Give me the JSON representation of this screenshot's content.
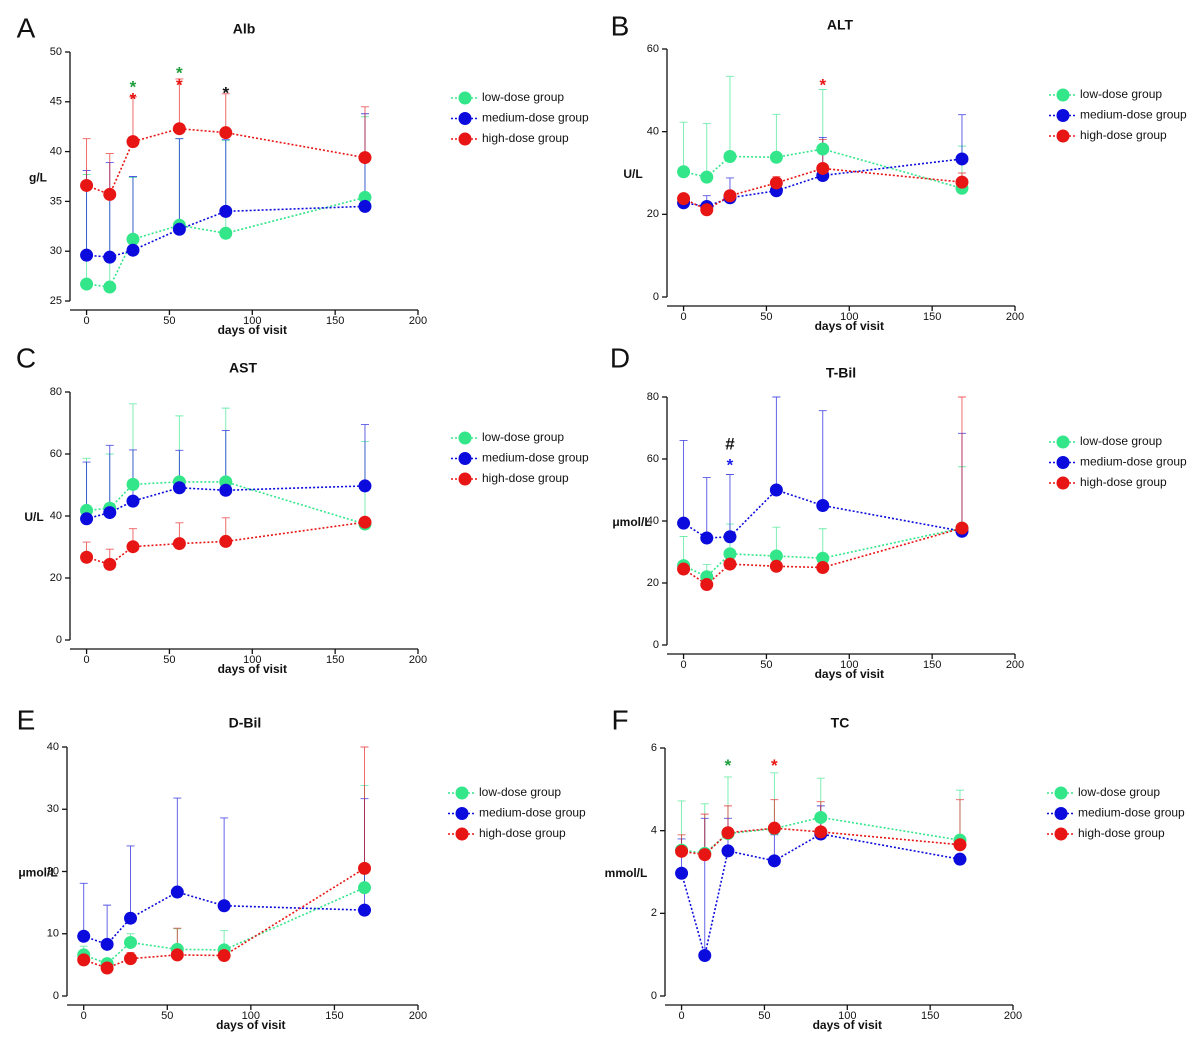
{
  "chart_data": [
    {
      "type": "line",
      "panel": "A",
      "title": "Alb",
      "x_label": "days of visit",
      "y_label": "g/L",
      "x": [
        0,
        14,
        28,
        56,
        84,
        168
      ],
      "xlim": [
        -10,
        200
      ],
      "xticks": [
        0,
        50,
        100,
        150,
        200
      ],
      "ylim": [
        25,
        50
      ],
      "yticks": [
        25,
        30,
        35,
        40,
        45,
        50
      ],
      "series": [
        {
          "name": "low-dose group",
          "color": "#33e68a",
          "values": [
            26.7,
            26.4,
            31.2,
            32.6,
            31.8,
            35.4
          ],
          "errors": [
            11,
            9,
            6.2,
            8.7,
            9.3,
            8.1
          ]
        },
        {
          "name": "medium-dose group",
          "color": "#0b0bdd",
          "values": [
            29.6,
            29.4,
            30.1,
            32.2,
            34.0,
            34.5
          ],
          "errors": [
            8.5,
            9.5,
            7.4,
            9.1,
            7.2,
            9.3
          ]
        },
        {
          "name": "high-dose group",
          "color": "#e81515",
          "values": [
            36.6,
            35.7,
            41.0,
            42.3,
            41.9,
            39.4
          ],
          "errors": [
            4.7,
            4.1,
            4.5,
            5.0,
            3.9,
            5.1
          ]
        }
      ],
      "annotations": [
        {
          "text": "*",
          "color": "#1e9e3a",
          "x": 28,
          "y": 46.8
        },
        {
          "text": "*",
          "color": "#e81515",
          "x": 28,
          "y": 45.6
        },
        {
          "text": "*",
          "color": "#1e9e3a",
          "x": 56,
          "y": 48.2
        },
        {
          "text": "*",
          "color": "#e81515",
          "x": 56,
          "y": 47.0
        },
        {
          "text": "*",
          "color": "#111111",
          "x": 84,
          "y": 46.2
        }
      ]
    },
    {
      "type": "line",
      "panel": "B",
      "title": "ALT",
      "x_label": "days of visit",
      "y_label": "U/L",
      "x": [
        0,
        14,
        28,
        56,
        84,
        168
      ],
      "xlim": [
        -10,
        200
      ],
      "xticks": [
        0,
        50,
        100,
        150,
        200
      ],
      "ylim": [
        0,
        60
      ],
      "yticks": [
        0,
        20,
        40,
        60
      ],
      "series": [
        {
          "name": "low-dose group",
          "color": "#33e68a",
          "values": [
            30.3,
            29.0,
            34.0,
            33.8,
            35.8,
            26.3
          ],
          "errors": [
            12.0,
            13.0,
            19.4,
            10.4,
            14.4,
            10.2
          ]
        },
        {
          "name": "medium-dose group",
          "color": "#0b0bdd",
          "values": [
            22.8,
            21.9,
            24.0,
            25.7,
            29.4,
            33.4
          ],
          "errors": [
            1.0,
            2.6,
            4.8,
            2.3,
            9.2,
            10.7
          ]
        },
        {
          "name": "high-dose group",
          "color": "#e81515",
          "values": [
            23.8,
            21.1,
            24.5,
            27.6,
            31.1,
            27.8
          ],
          "errors": [
            0.8,
            1.0,
            0.6,
            1.5,
            7.0,
            2.2
          ]
        }
      ],
      "annotations": [
        {
          "text": "*",
          "color": "#e81515",
          "x": 84,
          "y": 52
        }
      ]
    },
    {
      "type": "line",
      "panel": "C",
      "title": "AST",
      "x_label": "days of visit",
      "y_label": "U/L",
      "x": [
        0,
        14,
        28,
        56,
        84,
        168
      ],
      "xlim": [
        -10,
        200
      ],
      "xticks": [
        0,
        50,
        100,
        150,
        200
      ],
      "ylim": [
        0,
        80
      ],
      "yticks": [
        0,
        20,
        40,
        60,
        80
      ],
      "series": [
        {
          "name": "low-dose group",
          "color": "#33e68a",
          "values": [
            41.8,
            42.5,
            50.2,
            51.0,
            51.0,
            37.4
          ],
          "errors": [
            16.8,
            17.5,
            26.0,
            21.3,
            23.8,
            26.6
          ]
        },
        {
          "name": "medium-dose group",
          "color": "#0b0bdd",
          "values": [
            39.1,
            41.1,
            44.8,
            49.1,
            48.3,
            49.7
          ],
          "errors": [
            18.3,
            21.7,
            16.5,
            12.1,
            19.3,
            19.8
          ]
        },
        {
          "name": "high-dose group",
          "color": "#e81515",
          "values": [
            26.7,
            24.4,
            30.1,
            31.1,
            31.8,
            38.0
          ],
          "errors": [
            4.9,
            4.9,
            5.8,
            6.7,
            7.6,
            0.5
          ]
        }
      ],
      "annotations": []
    },
    {
      "type": "line",
      "panel": "D",
      "title": "T-Bil",
      "x_label": "days of visit",
      "y_label": "μmol/L",
      "x": [
        0,
        14,
        28,
        56,
        84,
        168
      ],
      "xlim": [
        -10,
        200
      ],
      "xticks": [
        0,
        50,
        100,
        150,
        200
      ],
      "ylim": [
        0,
        80
      ],
      "yticks": [
        0,
        20,
        40,
        60,
        80
      ],
      "series": [
        {
          "name": "low-dose group",
          "color": "#33e68a",
          "values": [
            25.6,
            22.0,
            29.4,
            28.7,
            28.0,
            37.7
          ],
          "errors": [
            9.4,
            4.0,
            9.6,
            9.3,
            9.5,
            19.8
          ]
        },
        {
          "name": "medium-dose group",
          "color": "#0b0bdd",
          "values": [
            39.3,
            34.5,
            34.9,
            50.0,
            45.0,
            36.7
          ],
          "errors": [
            26.7,
            19.5,
            20.1,
            30.0,
            30.6,
            31.6
          ]
        },
        {
          "name": "high-dose group",
          "color": "#e81515",
          "values": [
            24.5,
            19.5,
            26.1,
            25.4,
            25.0,
            37.7
          ],
          "errors": [
            2.5,
            2.5,
            3.9,
            3.6,
            3.0,
            42.3
          ]
        }
      ],
      "annotations": [
        {
          "text": "#",
          "color": "#111111",
          "x": 28,
          "y": 64.5
        },
        {
          "text": "*",
          "color": "#1a1aee",
          "x": 28,
          "y": 59
        }
      ]
    },
    {
      "type": "line",
      "panel": "E",
      "title": "D-Bil",
      "x_label": "days of visit",
      "y_label": "μmol/L",
      "x": [
        0,
        14,
        28,
        56,
        84,
        168
      ],
      "xlim": [
        -10,
        200
      ],
      "xticks": [
        0,
        50,
        100,
        150,
        200
      ],
      "ylim": [
        0,
        40
      ],
      "yticks": [
        0,
        10,
        20,
        30,
        40
      ],
      "series": [
        {
          "name": "low-dose group",
          "color": "#33e68a",
          "values": [
            6.6,
            5.2,
            8.6,
            7.5,
            7.4,
            17.4
          ],
          "errors": [
            1.4,
            0.8,
            1.4,
            3.3,
            3.1,
            16.4
          ]
        },
        {
          "name": "medium-dose group",
          "color": "#0b0bdd",
          "values": [
            9.6,
            8.3,
            12.5,
            16.7,
            14.5,
            13.8
          ],
          "errors": [
            8.5,
            6.3,
            11.6,
            15.1,
            14.1,
            17.9
          ]
        },
        {
          "name": "high-dose group",
          "color": "#e81515",
          "values": [
            5.8,
            4.5,
            6.0,
            6.6,
            6.5,
            20.5
          ],
          "errors": [
            0.7,
            0.5,
            1.0,
            4.3,
            1.0,
            19.5
          ]
        }
      ],
      "annotations": []
    },
    {
      "type": "line",
      "panel": "F",
      "title": "TC",
      "x_label": "days of visit",
      "y_label": "mmol/L",
      "x": [
        0,
        14,
        28,
        56,
        84,
        168
      ],
      "xlim": [
        -10,
        200
      ],
      "xticks": [
        0,
        50,
        100,
        150,
        200
      ],
      "ylim": [
        0,
        6
      ],
      "yticks": [
        0,
        2,
        4,
        6
      ],
      "series": [
        {
          "name": "low-dose group",
          "color": "#33e68a",
          "values": [
            3.53,
            3.45,
            3.93,
            4.05,
            4.32,
            3.77
          ],
          "errors": [
            1.19,
            1.2,
            1.37,
            1.35,
            0.95,
            1.21
          ]
        },
        {
          "name": "medium-dose group",
          "color": "#0b0bdd",
          "values": [
            2.97,
            0.98,
            3.51,
            3.27,
            3.92,
            3.31
          ],
          "errors": [
            0.83,
            3.32,
            0.79,
            0.63,
            0.68,
            0.1
          ]
        },
        {
          "name": "high-dose group",
          "color": "#e81515",
          "values": [
            3.5,
            3.42,
            3.95,
            4.06,
            3.97,
            3.66
          ],
          "errors": [
            0.4,
            0.98,
            0.65,
            0.69,
            0.73,
            1.09
          ]
        }
      ],
      "annotations": [
        {
          "text": "*",
          "color": "#1e9e3a",
          "x": 28,
          "y": 5.65
        },
        {
          "text": "*",
          "color": "#e81515",
          "x": 56,
          "y": 5.65
        }
      ]
    }
  ]
}
